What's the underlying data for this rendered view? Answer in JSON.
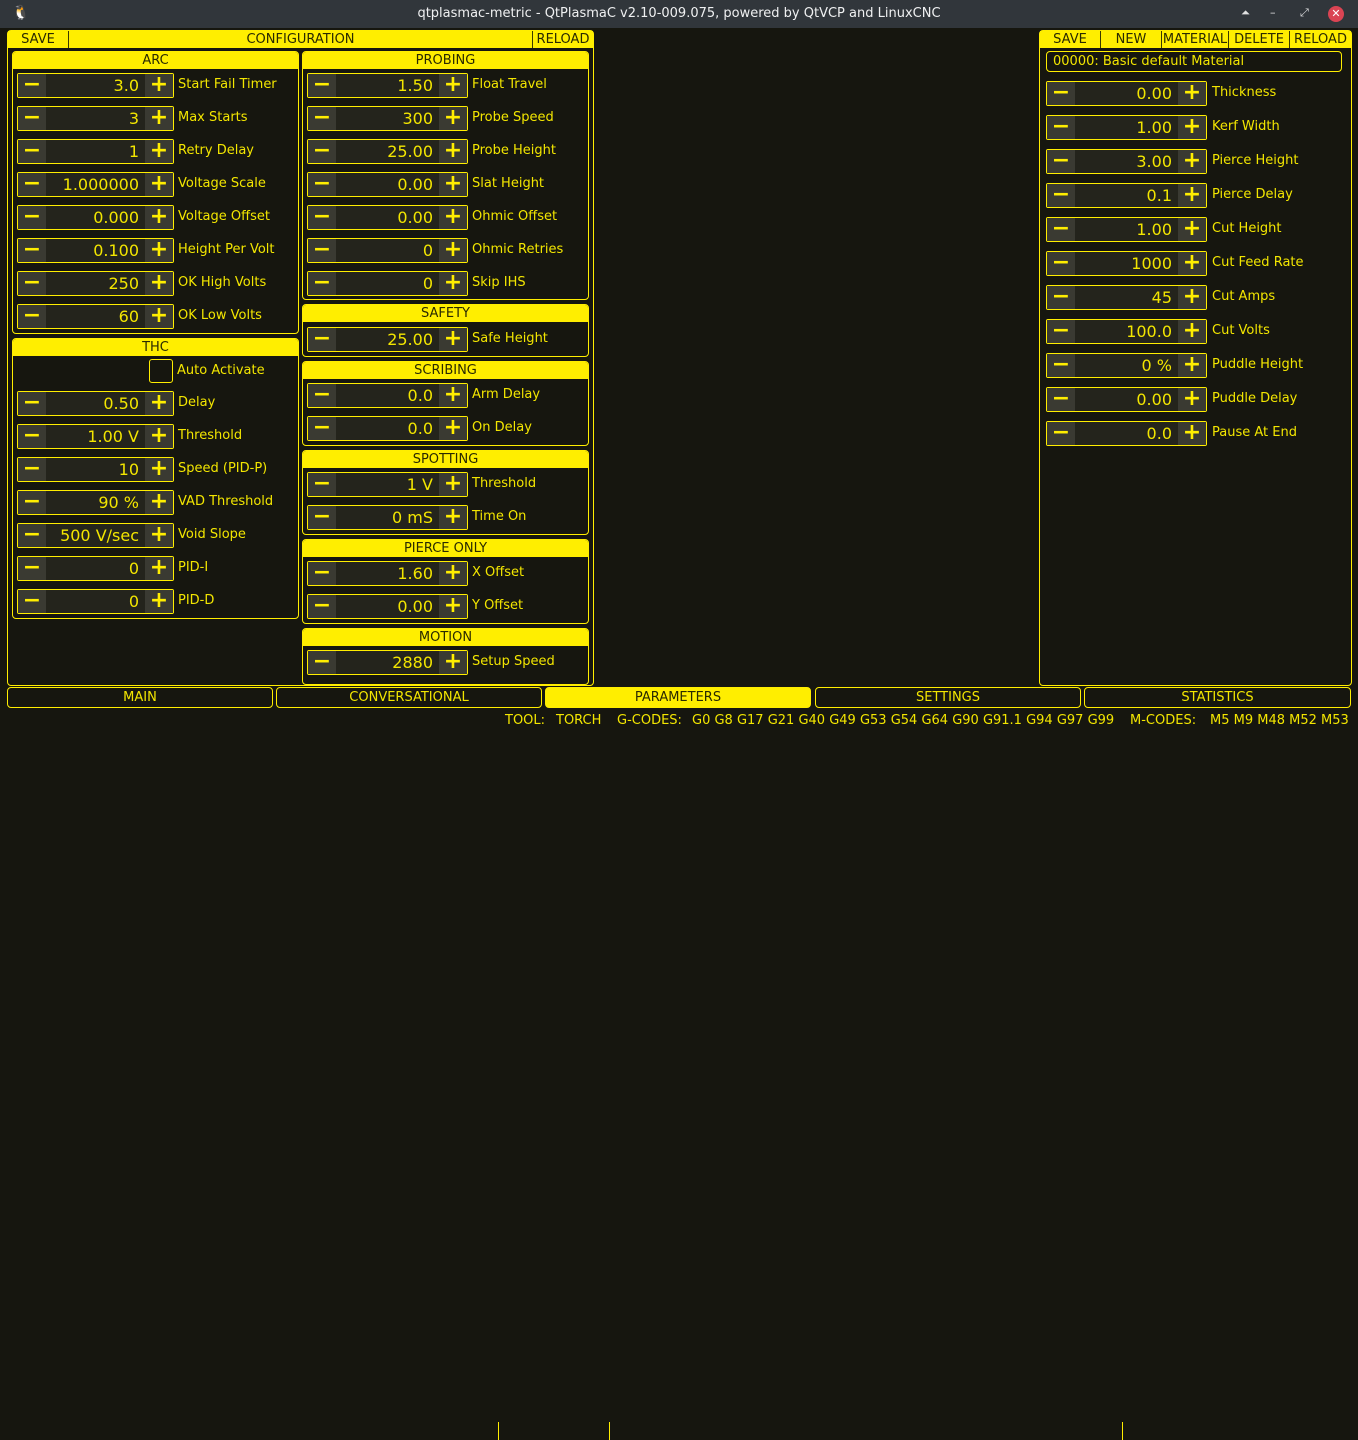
{
  "window": {
    "title": "qtplasmac-metric - QtPlasmaC v2.10-009.075, powered by QtVCP and LinuxCNC"
  },
  "config": {
    "save_label": "SAVE",
    "title": "CONFIGURATION",
    "reload_label": "RELOAD"
  },
  "groups": [
    {
      "id": "arc",
      "title": "ARC",
      "rows": [
        {
          "value": "3.0",
          "label": "Start Fail Timer"
        },
        {
          "value": "3",
          "label": "Max Starts"
        },
        {
          "value": "1",
          "label": "Retry Delay"
        },
        {
          "value": "1.000000",
          "label": "Voltage Scale"
        },
        {
          "value": "0.000",
          "label": "Voltage Offset"
        },
        {
          "value": "0.100",
          "label": "Height Per Volt"
        },
        {
          "value": "250",
          "label": "OK High Volts"
        },
        {
          "value": "60",
          "label": "OK Low Volts"
        }
      ]
    },
    {
      "id": "thc",
      "title": "THC",
      "checkbox": {
        "label": "Auto Activate",
        "checked": false
      },
      "rows": [
        {
          "value": "0.50",
          "label": "Delay"
        },
        {
          "value": "1.00 V",
          "label": "Threshold"
        },
        {
          "value": "10",
          "label": "Speed (PID-P)"
        },
        {
          "value": "90 %",
          "label": "VAD Threshold"
        },
        {
          "value": "500 V/sec",
          "label": "Void Slope"
        },
        {
          "value": "0",
          "label": "PID-I"
        },
        {
          "value": "0",
          "label": "PID-D"
        }
      ]
    },
    {
      "id": "probing",
      "title": "PROBING",
      "rows": [
        {
          "value": "1.50",
          "label": "Float Travel"
        },
        {
          "value": "300",
          "label": "Probe Speed"
        },
        {
          "value": "25.00",
          "label": "Probe Height"
        },
        {
          "value": "0.00",
          "label": "Slat Height"
        },
        {
          "value": "0.00",
          "label": "Ohmic Offset"
        },
        {
          "value": "0",
          "label": "Ohmic Retries"
        },
        {
          "value": "0",
          "label": "Skip IHS"
        }
      ]
    },
    {
      "id": "safety",
      "title": "SAFETY",
      "rows": [
        {
          "value": "25.00",
          "label": "Safe Height"
        }
      ]
    },
    {
      "id": "scribing",
      "title": "SCRIBING",
      "rows": [
        {
          "value": "0.0",
          "label": "Arm Delay"
        },
        {
          "value": "0.0",
          "label": "On Delay"
        }
      ]
    },
    {
      "id": "spotting",
      "title": "SPOTTING",
      "rows": [
        {
          "value": "1 V",
          "label": "Threshold"
        },
        {
          "value": "0 mS",
          "label": "Time On"
        }
      ]
    },
    {
      "id": "pierce-only",
      "title": "PIERCE ONLY",
      "rows": [
        {
          "value": "1.60",
          "label": "X Offset"
        },
        {
          "value": "0.00",
          "label": "Y Offset"
        }
      ]
    },
    {
      "id": "motion",
      "title": "MOTION",
      "rows": [
        {
          "value": "2880",
          "label": "Setup Speed"
        }
      ]
    }
  ],
  "material": {
    "buttons": [
      "SAVE",
      "NEW",
      "MATERIAL",
      "DELETE",
      "RELOAD"
    ],
    "selected": "00000: Basic default Material",
    "rows": [
      {
        "value": "0.00",
        "label": "Thickness"
      },
      {
        "value": "1.00",
        "label": "Kerf Width"
      },
      {
        "value": "3.00",
        "label": "Pierce Height"
      },
      {
        "value": "0.1",
        "label": "Pierce Delay"
      },
      {
        "value": "1.00",
        "label": "Cut Height"
      },
      {
        "value": "1000",
        "label": "Cut Feed Rate"
      },
      {
        "value": "45",
        "label": "Cut Amps"
      },
      {
        "value": "100.0",
        "label": "Cut Volts"
      },
      {
        "value": "0 %",
        "label": "Puddle Height"
      },
      {
        "value": "0.00",
        "label": "Puddle Delay"
      },
      {
        "value": "0.0",
        "label": "Pause At End"
      }
    ]
  },
  "tabs": [
    {
      "label": "MAIN"
    },
    {
      "label": "CONVERSATIONAL"
    },
    {
      "label": "PARAMETERS",
      "active": true
    },
    {
      "label": "SETTINGS"
    },
    {
      "label": "STATISTICS"
    }
  ],
  "status": {
    "tool_label": "TOOL:",
    "tool": "TORCH",
    "gcodes_label": "G-CODES:",
    "gcodes": "G0 G8 G17 G21 G40 G49 G53 G54 G64 G90 G91.1 G94 G97 G99",
    "mcodes_label": "M-CODES:",
    "mcodes": "M5 M9 M48 M52 M53"
  },
  "colors": {
    "accent": "#ffee00",
    "background": "#16160f"
  }
}
